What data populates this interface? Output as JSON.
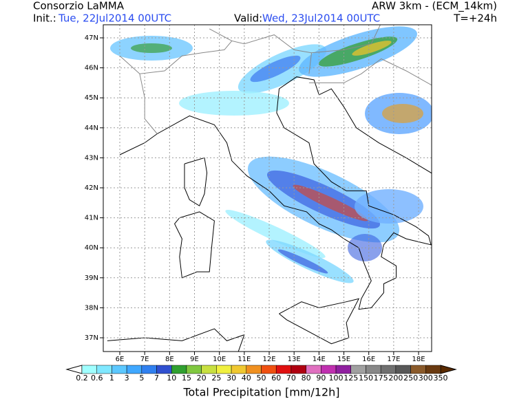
{
  "header": {
    "title": "Consorzio LaMMA",
    "init_label": "Init.:",
    "init_value": "Tue, 22Jul2014 00UTC",
    "valid_label": "Valid:",
    "valid_value": "Wed, 23Jul2014 00UTC",
    "model": "ARW 3km - (ECM_14km)",
    "lead": "T=+24h"
  },
  "map": {
    "lon_labels": [
      "6E",
      "7E",
      "8E",
      "9E",
      "10E",
      "11E",
      "12E",
      "13E",
      "14E",
      "15E",
      "16E",
      "17E",
      "18E"
    ],
    "lat_labels": [
      "47N",
      "46N",
      "45N",
      "44N",
      "43N",
      "42N",
      "41N",
      "40N",
      "39N",
      "38N",
      "37N"
    ]
  },
  "colorbar": {
    "label": "Total Precipitation [mm/12h]",
    "levels": [
      0.2,
      0.6,
      1,
      3,
      5,
      7,
      10,
      15,
      20,
      25,
      30,
      40,
      50,
      60,
      70,
      80,
      90,
      100,
      125,
      150,
      175,
      200,
      250,
      300,
      350
    ],
    "colors": [
      "#a0ffff",
      "#80e8ff",
      "#5cc8ff",
      "#40a8ff",
      "#3080f0",
      "#3050d0",
      "#30a030",
      "#80c840",
      "#c8e040",
      "#f0f040",
      "#f0c830",
      "#f09020",
      "#f05010",
      "#e01010",
      "#b00010",
      "#e070c0",
      "#c030b0",
      "#9020a0",
      "#a0a0a0",
      "#888888",
      "#707070",
      "#585858",
      "#8a5a2a",
      "#6a3a10"
    ],
    "under_color": "#ffffff",
    "over_color": "#5a2a00"
  }
}
